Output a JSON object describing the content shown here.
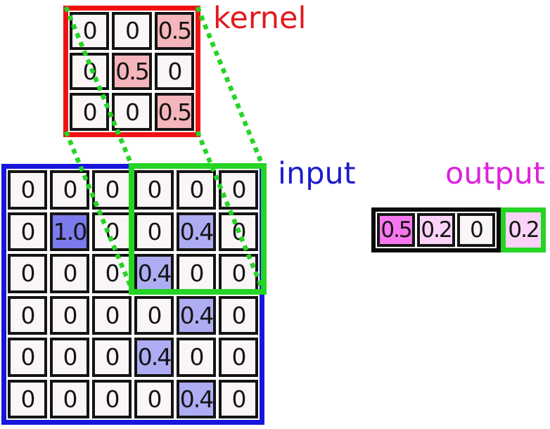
{
  "labels": {
    "kernel": "kernel",
    "input": "input",
    "output": "output"
  },
  "kernel_grid": {
    "rows": [
      [
        "0",
        "0",
        "0.5"
      ],
      [
        "0",
        "0.5",
        "0"
      ],
      [
        "0",
        "0",
        "0.5"
      ]
    ]
  },
  "input_grid": {
    "rows": [
      [
        "0",
        "0",
        "0",
        "0",
        "0",
        "0"
      ],
      [
        "0",
        "1.0",
        "0",
        "0",
        "0.4",
        "0"
      ],
      [
        "0",
        "0",
        "0",
        "0.4",
        "0",
        "0"
      ],
      [
        "0",
        "0",
        "0",
        "0",
        "0.4",
        "0"
      ],
      [
        "0",
        "0",
        "0",
        "0.4",
        "0",
        "0"
      ],
      [
        "0",
        "0",
        "0",
        "0",
        "0.4",
        "0"
      ]
    ]
  },
  "output_row": {
    "cells": [
      {
        "value": "0.5",
        "shade": "strong",
        "highlighted": false
      },
      {
        "value": "0.2",
        "shade": "light",
        "highlighted": false
      },
      {
        "value": "0",
        "shade": "none",
        "highlighted": false
      },
      {
        "value": "0.2",
        "shade": "light",
        "highlighted": true
      }
    ]
  },
  "cell_shade_values": {
    "kernel": {
      "0.5": "kernel_highlight_fill"
    },
    "input": {
      "1.0": "input_fill_strong",
      "0.4": "input_fill_light"
    }
  },
  "colors": {
    "kernel_border": "#ee1212",
    "kernel_label": "#e31a1e",
    "kernel_highlight_fill": "#f5b6bb",
    "input_border": "#1616dc",
    "input_label": "#1c1ccb",
    "input_fill_strong": "#7b7bec",
    "input_fill_light": "#aeadf3",
    "output_label": "#dd22dd",
    "output_fill_strong": "#f778ee",
    "output_fill_light": "#fbd2f8",
    "highlight_green": "#25d425",
    "cell_background": "#faf6f7",
    "cell_border": "#141414"
  }
}
